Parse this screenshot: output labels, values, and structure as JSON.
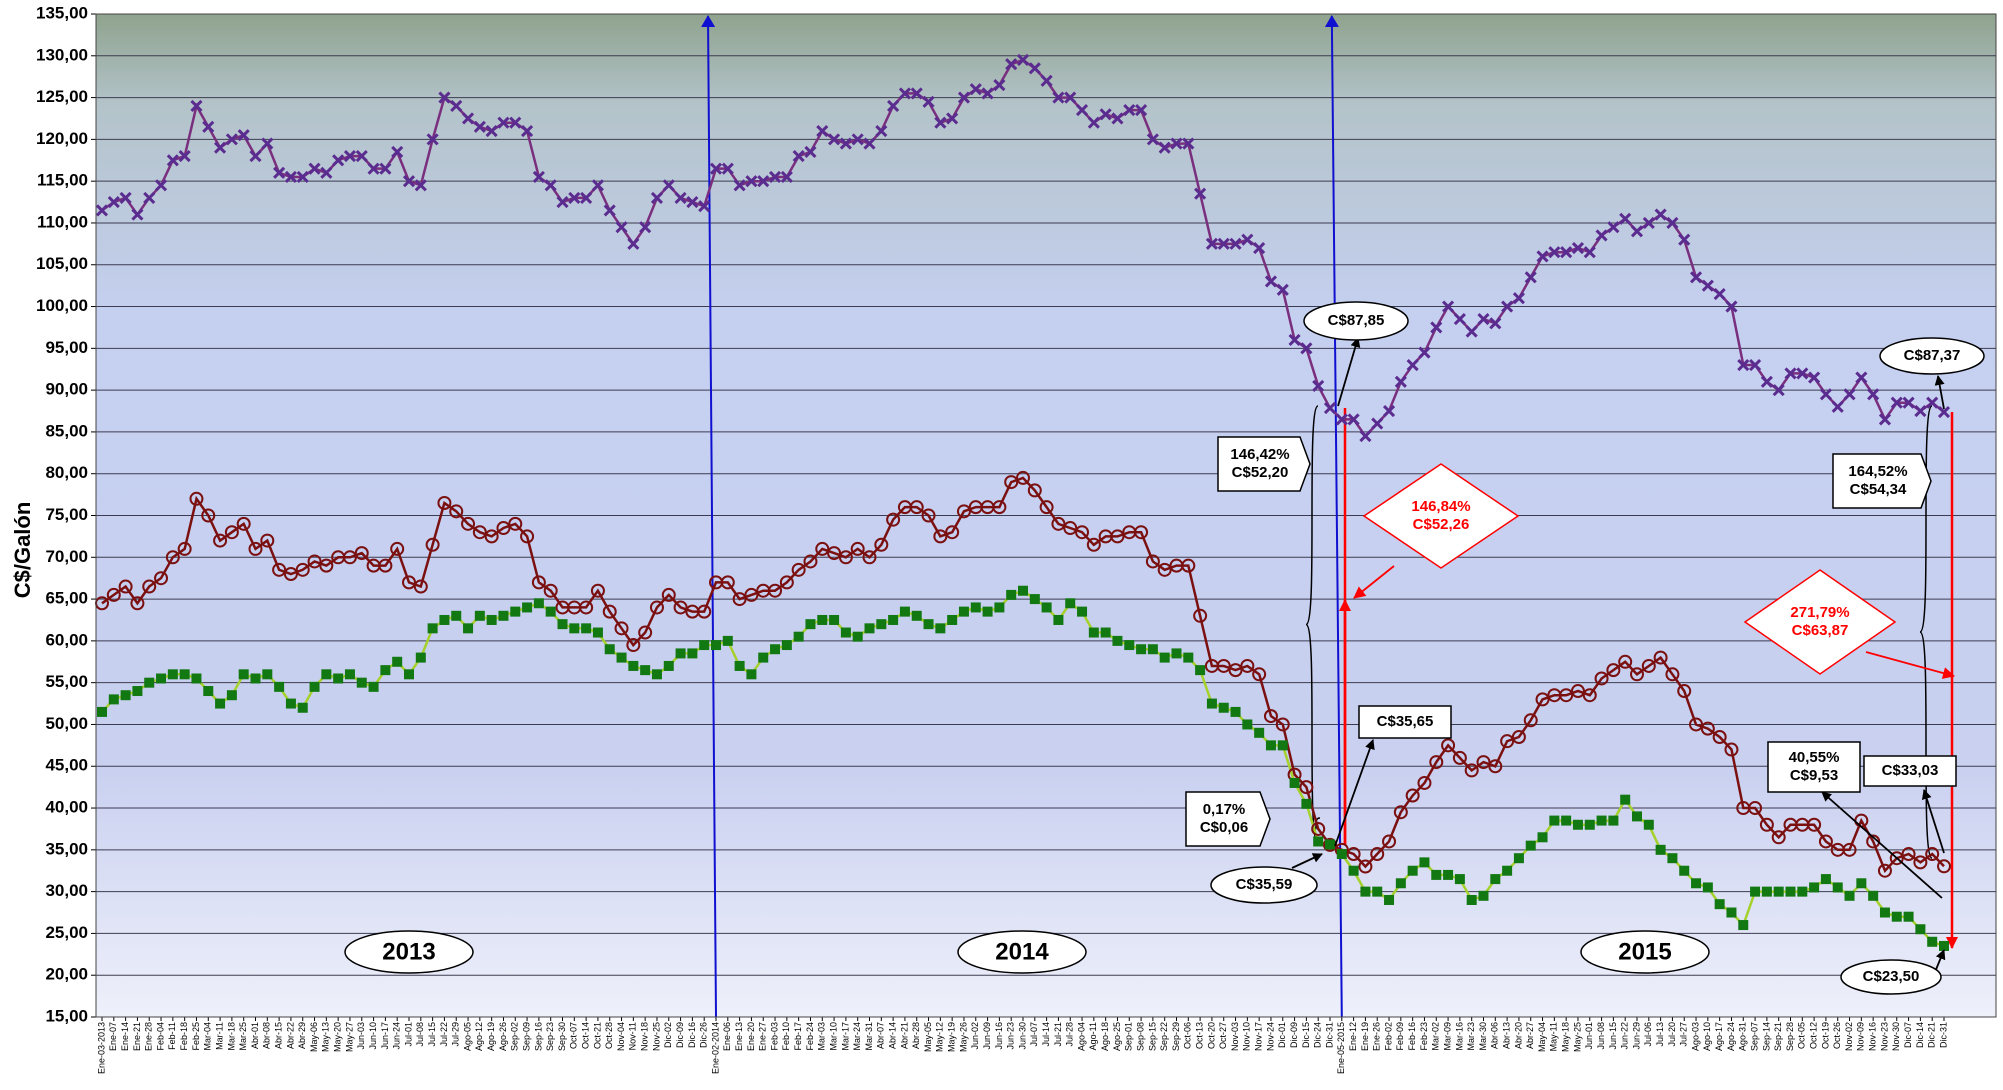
{
  "chart_data": {
    "type": "line",
    "y_label": "C$/Galón",
    "categories": [
      "Ene-03-2013",
      "Ene-07",
      "Ene-14",
      "Ene-21",
      "Ene-28",
      "Feb-04",
      "Feb-11",
      "Feb-18",
      "Feb-25",
      "Mar-04",
      "Mar-11",
      "Mar-18",
      "Mar-25",
      "Abr-01",
      "Abr-08",
      "Abr-15",
      "Abr-22",
      "Abr-29",
      "May-06",
      "May-13",
      "May-20",
      "May-27",
      "Jun-03",
      "Jun-10",
      "Jun-17",
      "Jun-24",
      "Jul-01",
      "Jul-08",
      "Jul-15",
      "Jul-22",
      "Jul-29",
      "Ago-05",
      "Ago-12",
      "Ago-19",
      "Ago-26",
      "Sep-02",
      "Sep-09",
      "Sep-16",
      "Sep-23",
      "Sep-30",
      "Oct-07",
      "Oct-14",
      "Oct-21",
      "Oct-28",
      "Nov-04",
      "Nov-11",
      "Nov-18",
      "Nov-25",
      "Dic-02",
      "Dic-09",
      "Dic-16",
      "Dic-26",
      "Ene-02-2014",
      "Ene-06",
      "Ene-13",
      "Ene-20",
      "Ene-27",
      "Feb-03",
      "Feb-10",
      "Feb-17",
      "Feb-24",
      "Mar-03",
      "Mar-10",
      "Mar-17",
      "Mar-24",
      "Mar-31",
      "Abr-07",
      "Abr-14",
      "Abr-21",
      "Abr-28",
      "May-05",
      "May-12",
      "May-19",
      "May-26",
      "Jun-02",
      "Jun-09",
      "Jun-16",
      "Jun-23",
      "Jun-30",
      "Jul-07",
      "Jul-14",
      "Jul-21",
      "Jul-28",
      "Ago-04",
      "Ago-11",
      "Ago-18",
      "Ago-25",
      "Sep-01",
      "Sep-08",
      "Sep-15",
      "Sep-22",
      "Sep-29",
      "Oct-06",
      "Oct-13",
      "Oct-20",
      "Oct-27",
      "Nov-03",
      "Nov-10",
      "Nov-17",
      "Nov-24",
      "Dic-01",
      "Dic-09",
      "Dic-15",
      "Dic-24",
      "Dic-31",
      "Ene-05-2015",
      "Ene-12",
      "Ene-19",
      "Ene-26",
      "Feb-02",
      "Feb-09",
      "Feb-16",
      "Feb-23",
      "Mar-02",
      "Mar-09",
      "Mar-16",
      "Mar-23",
      "Mar-30",
      "Abr-06",
      "Abr-13",
      "Abr-20",
      "Abr-27",
      "May-04",
      "May-11",
      "May-18",
      "May-25",
      "Jun-01",
      "Jun-08",
      "Jun-15",
      "Jun-22",
      "Jun-29",
      "Jul-06",
      "Jul-13",
      "Jul-20",
      "Jul-27",
      "Ago-03",
      "Ago-10",
      "Ago-17",
      "Ago-24",
      "Ago-31",
      "Sep-07",
      "Sep-14",
      "Sep-21",
      "Sep-28",
      "Oct-05",
      "Oct-12",
      "Oct-19",
      "Oct-26",
      "Nov-02",
      "Nov-09",
      "Nov-16",
      "Nov-23",
      "Nov-30",
      "Dic-07",
      "Dic-14",
      "Dic-21",
      "Dic-31"
    ],
    "series": [
      {
        "color": "#7a2f7e",
        "marker": "x",
        "marker_color": "#5b2c8f",
        "values": [
          111.5,
          112.5,
          113,
          111,
          113,
          114.5,
          117.5,
          118,
          124,
          121.5,
          119,
          120,
          120.5,
          118,
          119.5,
          116,
          115.5,
          115.5,
          116.5,
          116,
          117.5,
          118,
          118,
          116.5,
          116.5,
          118.5,
          115,
          114.5,
          120,
          125,
          124,
          122.5,
          121.5,
          121,
          122,
          122,
          121,
          115.5,
          114.5,
          112.5,
          113,
          113,
          114.5,
          111.5,
          109.5,
          107.5,
          109.5,
          113,
          114.5,
          113,
          112.5,
          112,
          116.5,
          116.5,
          114.5,
          115,
          115,
          115.5,
          115.5,
          118,
          118.5,
          121,
          120,
          119.5,
          120,
          119.5,
          121,
          124,
          125.5,
          125.5,
          124.5,
          122,
          122.5,
          125,
          126,
          125.5,
          126.5,
          129,
          129.5,
          128.5,
          127,
          125,
          125,
          123.5,
          122,
          123,
          122.5,
          123.5,
          123.5,
          120,
          119,
          119.5,
          119.5,
          113.5,
          107.5,
          107.5,
          107.5,
          108,
          107,
          103,
          102,
          96,
          95,
          90.5,
          87.85,
          86.5,
          86.5,
          84.5,
          86,
          87.5,
          91,
          93,
          94.5,
          97.5,
          100,
          98.5,
          97,
          98.5,
          98,
          100,
          101,
          103.5,
          106,
          106.5,
          106.5,
          107,
          106.5,
          108.5,
          109.5,
          110.5,
          109,
          110,
          111,
          110,
          108,
          103.5,
          102.5,
          101.5,
          100,
          93,
          93,
          91,
          90,
          92,
          92,
          91.5,
          89.5,
          88,
          89.5,
          91.5,
          89.5,
          86.5,
          88.5,
          88.5,
          87.5,
          88.5,
          87.37
        ]
      },
      {
        "color": "#7b1010",
        "marker": "circle",
        "marker_color": "#7b1010",
        "values": [
          64.5,
          65.5,
          66.5,
          64.5,
          66.5,
          67.5,
          70,
          71,
          77,
          75,
          72,
          73,
          74,
          71,
          72,
          68.5,
          68,
          68.5,
          69.5,
          69,
          70,
          70,
          70.5,
          69,
          69,
          71,
          67,
          66.5,
          71.5,
          76.5,
          75.5,
          74,
          73,
          72.5,
          73.5,
          74,
          72.5,
          67,
          66,
          64,
          64,
          64,
          66,
          63.5,
          61.5,
          59.5,
          61,
          64,
          65.5,
          64,
          63.5,
          63.5,
          67,
          67,
          65,
          65.5,
          66,
          66,
          67,
          68.5,
          69.5,
          71,
          70.5,
          70,
          71,
          70,
          71.5,
          74.5,
          76,
          76,
          75,
          72.5,
          73,
          75.5,
          76,
          76,
          76,
          79,
          79.5,
          78,
          76,
          74,
          73.5,
          73,
          71.5,
          72.5,
          72.5,
          73,
          73,
          69.5,
          68.5,
          69,
          69,
          63,
          57,
          57,
          56.5,
          57,
          56,
          51,
          50,
          44,
          42.5,
          37.5,
          35.59,
          35,
          34.5,
          33,
          34.5,
          36,
          39.5,
          41.5,
          43,
          45.5,
          47.5,
          46,
          44.5,
          45.5,
          45,
          48,
          48.5,
          50.5,
          53,
          53.5,
          53.5,
          54,
          53.5,
          55.5,
          56.5,
          57.5,
          56,
          57,
          58,
          56,
          54,
          50,
          49.5,
          48.5,
          47,
          40,
          40,
          38,
          36.5,
          38,
          38,
          38,
          36,
          35,
          35,
          38.5,
          36,
          32.5,
          34,
          34.5,
          33.5,
          34.5,
          33.03
        ]
      },
      {
        "color": "#a4d12c",
        "marker": "square",
        "marker_color": "#127812",
        "values": [
          51.5,
          53,
          53.5,
          54,
          55,
          55.5,
          56,
          56,
          55.5,
          54,
          52.5,
          53.5,
          56,
          55.5,
          56,
          54.5,
          52.5,
          52,
          54.5,
          56,
          55.5,
          56,
          55,
          54.5,
          56.5,
          57.5,
          56,
          58,
          61.5,
          62.5,
          63,
          61.5,
          63,
          62.5,
          63,
          63.5,
          64,
          64.5,
          63.5,
          62,
          61.5,
          61.5,
          61,
          59,
          58,
          57,
          56.5,
          56,
          57,
          58.5,
          58.5,
          59.5,
          59.5,
          60,
          57,
          56,
          58,
          59,
          59.5,
          60.5,
          62,
          62.5,
          62.5,
          61,
          60.5,
          61.5,
          62,
          62.5,
          63.5,
          63,
          62,
          61.5,
          62.5,
          63.5,
          64,
          63.5,
          64,
          65.5,
          66,
          65,
          64,
          62.5,
          64.5,
          63.5,
          61,
          61,
          60,
          59.5,
          59,
          59,
          58,
          58.5,
          58,
          56.5,
          52.5,
          52,
          51.5,
          50,
          49,
          47.5,
          47.5,
          43,
          40.5,
          36,
          35.65,
          34.5,
          32.5,
          30,
          30,
          29,
          31,
          32.5,
          33.5,
          32,
          32,
          31.5,
          29,
          29.5,
          31.5,
          32.5,
          34,
          35.5,
          36.5,
          38.5,
          38.5,
          38,
          38,
          38.5,
          38.5,
          41,
          39,
          38,
          35,
          34,
          32.5,
          31,
          30.5,
          28.5,
          27.5,
          26,
          30,
          30,
          30,
          30,
          30,
          30.5,
          31.5,
          30.5,
          29.5,
          31,
          29.5,
          27.5,
          27,
          27,
          25.5,
          24,
          23.5
        ]
      }
    ],
    "ylim": [
      15,
      135
    ],
    "yticks": [
      {
        "value": 15,
        "label": "15,00"
      },
      {
        "value": 20,
        "label": "20,00"
      },
      {
        "value": 25,
        "label": "25,00"
      },
      {
        "value": 30,
        "label": "30,00"
      },
      {
        "value": 35,
        "label": "35,00"
      },
      {
        "value": 40,
        "label": "40,00"
      },
      {
        "value": 45,
        "label": "45,00"
      },
      {
        "value": 50,
        "label": "50,00"
      },
      {
        "value": 55,
        "label": "55,00"
      },
      {
        "value": 60,
        "label": "60,00"
      },
      {
        "value": 65,
        "label": "65,00"
      },
      {
        "value": 70,
        "label": "70,00"
      },
      {
        "value": 75,
        "label": "75,00"
      },
      {
        "value": 80,
        "label": "80,00"
      },
      {
        "value": 85,
        "label": "85,00"
      },
      {
        "value": 90,
        "label": "90,00"
      },
      {
        "value": 95,
        "label": "95,00"
      },
      {
        "value": 100,
        "label": "100,00"
      },
      {
        "value": 105,
        "label": "105,00"
      },
      {
        "value": 110,
        "label": "110,00"
      },
      {
        "value": 115,
        "label": "115,00"
      },
      {
        "value": 120,
        "label": "120,00"
      },
      {
        "value": 125,
        "label": "125,00"
      },
      {
        "value": 130,
        "label": "130,00"
      },
      {
        "value": 135,
        "label": "135,00"
      }
    ],
    "grid": true,
    "year_labels": [
      "2013",
      "2014",
      "2015"
    ],
    "annotations": [
      {
        "lines": [
          "C$87,85"
        ]
      },
      {
        "lines": [
          "146,42%",
          "C$52,20"
        ]
      },
      {
        "lines": [
          "146,84%",
          "C$52,26"
        ]
      },
      {
        "lines": [
          "0,17%",
          "C$0,06"
        ]
      },
      {
        "lines": [
          "C$35,59"
        ]
      },
      {
        "lines": [
          "C$35,65"
        ]
      },
      {
        "lines": [
          "C$87,37"
        ]
      },
      {
        "lines": [
          "164,52%",
          "C$54,34"
        ]
      },
      {
        "lines": [
          "271,79%",
          "C$63,87"
        ]
      },
      {
        "lines": [
          "40,55%",
          "C$9,53"
        ]
      },
      {
        "lines": [
          "C$33,03"
        ]
      },
      {
        "lines": [
          "C$23,50"
        ]
      }
    ]
  }
}
